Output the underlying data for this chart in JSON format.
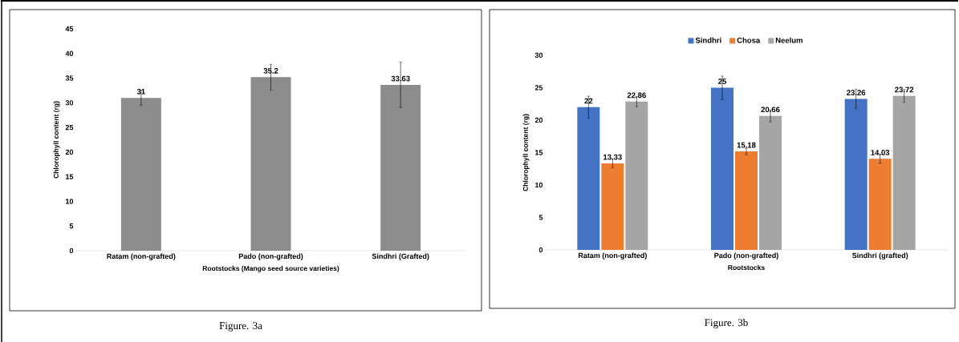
{
  "chart_data": [
    {
      "type": "bar",
      "categories": [
        "Ratam (non-grafted)",
        "Pado (non-grafted)",
        "Sindhri (Grafted)"
      ],
      "values": [
        31,
        35.2,
        33.63
      ],
      "errors": [
        1.5,
        2.6,
        4.6
      ],
      "color": "#8c8c8c",
      "xlabel": "Rootstocks (Mango seed source varieties)",
      "ylabel": "Chlorophyll content (rg)",
      "ylim": [
        0,
        45
      ],
      "yticks": [
        0,
        5,
        10,
        15,
        20,
        25,
        30,
        35,
        40,
        45
      ],
      "data_labels": true,
      "grid": false,
      "legend": false,
      "annotations": [
        "Figure. 3a"
      ]
    },
    {
      "type": "bar",
      "categories": [
        "Ratam (non-grafted)",
        "Pado (non-grafted)",
        "Sindhri (grafted)"
      ],
      "series": [
        {
          "name": "Sindhri",
          "color": "#4472c4",
          "values": [
            22,
            25,
            23.26
          ],
          "errors": [
            1.7,
            1.8,
            1.5
          ]
        },
        {
          "name": "Chosa",
          "color": "#ed7d31",
          "values": [
            13.33,
            15.18,
            14.03
          ],
          "errors": [
            0.7,
            0.5,
            0.7
          ]
        },
        {
          "name": "Neelum",
          "color": "#a5a5a5",
          "values": [
            22.86,
            20.66,
            23.72
          ],
          "errors": [
            0.8,
            0.9,
            1.0
          ]
        }
      ],
      "xlabel": "Rootstocks",
      "ylabel": "Chlorophyll content (rg)",
      "ylim": [
        0,
        30
      ],
      "yticks": [
        0,
        5,
        10,
        15,
        20,
        25,
        30
      ],
      "data_labels": true,
      "grid": false,
      "legend": "top",
      "annotations": [
        "Figure. 3b"
      ]
    }
  ]
}
